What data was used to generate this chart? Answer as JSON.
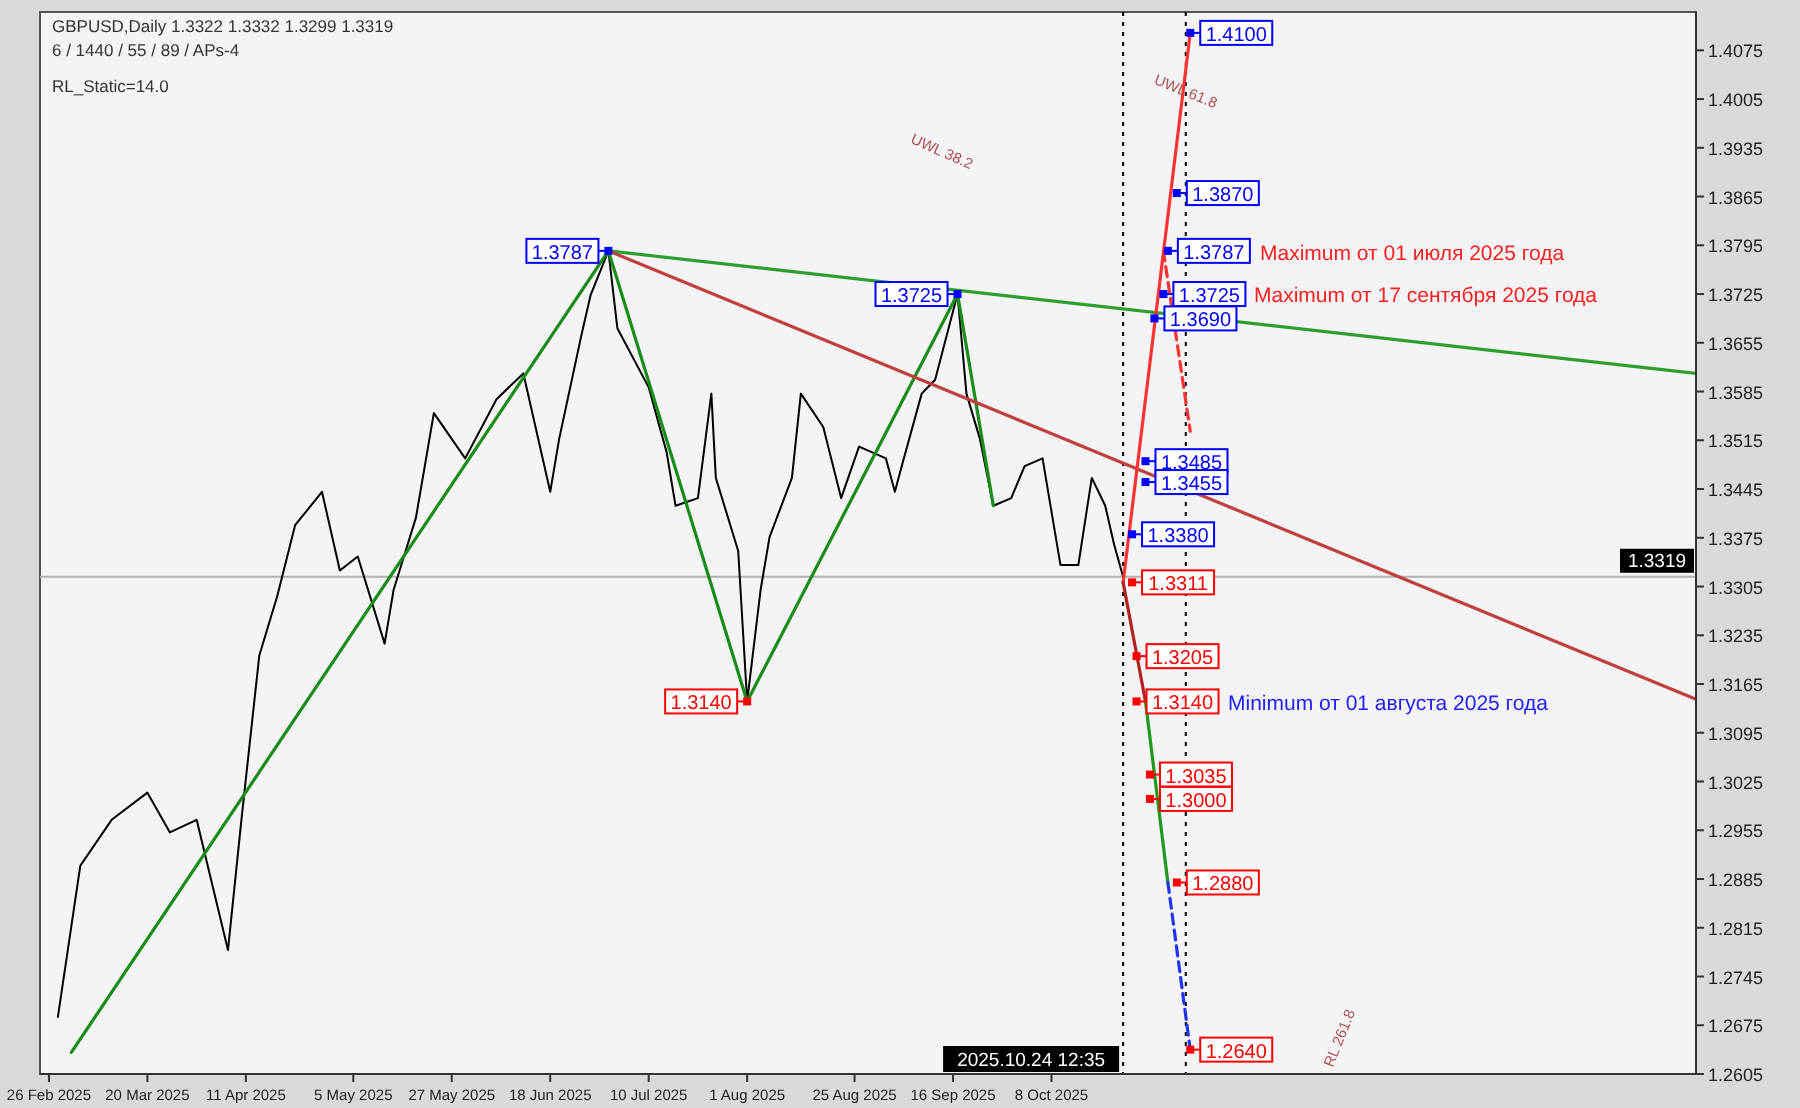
{
  "chart_data": {
    "type": "line",
    "title": "GBPUSD,Daily  1.3322 1.3332 1.3299 1.3319",
    "subtitle": "6 / 1440 / 55 / 89 / APs-4",
    "annotations": [
      "RL_Static=14.0",
      "UWL 38.2",
      "UWL 61.8",
      "RL 261.8",
      "Maximum от 01 июля 2025 года",
      "Maximum от 17 сентября 2025 года",
      "Minimum от 01 августа 2025 года"
    ],
    "xlim": [
      "2025-02-24",
      "2026-03-01"
    ],
    "xticks": [
      {
        "value": "2025-02-26",
        "label": "26 Feb 2025"
      },
      {
        "value": "2025-03-20",
        "label": "20 Mar 2025"
      },
      {
        "value": "2025-04-11",
        "label": "11 Apr 2025"
      },
      {
        "value": "2025-05-05",
        "label": "5 May 2025"
      },
      {
        "value": "2025-05-27",
        "label": "27 May 2025"
      },
      {
        "value": "2025-06-18",
        "label": "18 Jun 2025"
      },
      {
        "value": "2025-07-10",
        "label": "10 Jul 2025"
      },
      {
        "value": "2025-08-01",
        "label": "1 Aug 2025"
      },
      {
        "value": "2025-08-25",
        "label": "25 Aug 2025"
      },
      {
        "value": "2025-09-16",
        "label": "16 Sep 2025"
      },
      {
        "value": "2025-10-08",
        "label": "8 Oct 2025"
      }
    ],
    "ylim": [
      1.2605,
      1.413
    ],
    "yticks": [
      1.2605,
      1.2675,
      1.2745,
      1.2815,
      1.2885,
      1.2955,
      1.3025,
      1.3095,
      1.3165,
      1.3235,
      1.3305,
      1.3375,
      1.3445,
      1.3515,
      1.3585,
      1.3655,
      1.3725,
      1.3795,
      1.3865,
      1.3935,
      1.4005,
      1.4075
    ],
    "ref_lines": [
      {
        "axis": "y",
        "value": 1.3319,
        "label": "1.3319",
        "color": "#b0b0b0"
      },
      {
        "axis": "x",
        "value": "2025-10-24",
        "label": "2025.10.24 12:35",
        "color": "#000000",
        "line_style": "dotted"
      },
      {
        "axis": "x",
        "value": "2025-11-07",
        "label": null,
        "color": "#000000",
        "line_style": "dotted"
      }
    ],
    "series": [
      {
        "type": "line",
        "color": "#000000",
        "x": [
          "2025-02-28",
          "2025-03-05",
          "2025-03-12",
          "2025-03-20",
          "2025-03-25",
          "2025-03-31",
          "2025-04-07",
          "2025-04-10",
          "2025-04-14",
          "2025-04-18",
          "2025-04-22",
          "2025-04-28",
          "2025-05-02",
          "2025-05-06",
          "2025-05-12",
          "2025-05-14",
          "2025-05-19",
          "2025-05-23",
          "2025-05-30",
          "2025-06-06",
          "2025-06-12",
          "2025-06-18",
          "2025-06-20",
          "2025-06-25",
          "2025-06-27",
          "2025-07-01",
          "2025-07-03",
          "2025-07-10",
          "2025-07-14",
          "2025-07-16",
          "2025-07-21",
          "2025-07-24",
          "2025-07-25",
          "2025-07-30",
          "2025-08-01",
          "2025-08-04",
          "2025-08-06",
          "2025-08-11",
          "2025-08-13",
          "2025-08-18",
          "2025-08-22",
          "2025-08-26",
          "2025-09-01",
          "2025-09-03",
          "2025-09-05",
          "2025-09-09",
          "2025-09-12",
          "2025-09-17",
          "2025-09-19",
          "2025-09-22",
          "2025-09-25",
          "2025-09-29",
          "2025-10-02",
          "2025-10-06",
          "2025-10-10",
          "2025-10-14",
          "2025-10-17",
          "2025-10-20",
          "2025-10-22",
          "2025-10-24"
        ],
        "values": [
          1.2687,
          1.2904,
          1.297,
          1.3009,
          1.2952,
          1.297,
          1.2783,
          1.297,
          1.3206,
          1.3291,
          1.3393,
          1.3441,
          1.3328,
          1.3348,
          1.3223,
          1.33,
          1.3404,
          1.3554,
          1.3489,
          1.3574,
          1.3611,
          1.3441,
          1.3517,
          1.3667,
          1.3723,
          1.3787,
          1.3676,
          1.3591,
          1.3498,
          1.3421,
          1.3432,
          1.3582,
          1.3461,
          1.3356,
          1.314,
          1.33,
          1.3376,
          1.3461,
          1.3582,
          1.3534,
          1.3432,
          1.3506,
          1.3489,
          1.3441,
          1.3489,
          1.3582,
          1.3602,
          1.3725,
          1.3582,
          1.3517,
          1.3421,
          1.3432,
          1.3478,
          1.3489,
          1.3336,
          1.3336,
          1.3461,
          1.3421,
          1.3365,
          1.3319
        ]
      },
      {
        "type": "line",
        "color": "#1a8c1a",
        "x": [
          "2025-03-03",
          "2025-07-01",
          "2025-08-01",
          "2025-09-17",
          "2025-09-25"
        ],
        "values": [
          1.2636,
          1.3787,
          1.314,
          1.3725,
          1.3421
        ]
      },
      {
        "type": "line",
        "color": "#2e9e2e",
        "x": [
          "2025-07-01",
          "2026-03-01"
        ],
        "values": [
          1.3787,
          1.3611
        ]
      },
      {
        "type": "line",
        "color": "#c04040",
        "x": [
          "2025-07-01",
          "2026-03-01"
        ],
        "values": [
          1.3787,
          1.3143
        ]
      },
      {
        "type": "line",
        "color": "#ff3333",
        "x": [
          "2025-10-24",
          "2025-11-08"
        ],
        "values": [
          1.3311,
          1.41
        ]
      },
      {
        "type": "line",
        "color": "#ff3333",
        "line_style": "dashed",
        "x": [
          "2025-11-02",
          "2025-11-08"
        ],
        "values": [
          1.3787,
          1.3528
        ]
      },
      {
        "type": "line",
        "color": "#b22222",
        "x": [
          "2025-10-24",
          "2025-10-29"
        ],
        "values": [
          1.3311,
          1.314
        ]
      },
      {
        "type": "line",
        "color": "#1f9a1f",
        "x": [
          "2025-10-29",
          "2025-11-03"
        ],
        "values": [
          1.314,
          1.288
        ]
      },
      {
        "type": "line",
        "color": "#2233ee",
        "line_style": "dashed",
        "x": [
          "2025-11-03",
          "2025-11-08"
        ],
        "values": [
          1.288,
          1.264
        ]
      },
      {
        "type": "scatter",
        "marker": "square",
        "colors": [
          "#0000ff",
          "#0000ff",
          "#ff0000",
          "#0000ff",
          "#0000ff",
          "#0000ff",
          "#0000ff",
          "#0000ff",
          "#0000ff",
          "#0000ff",
          "#0000ff",
          "#ff0000",
          "#ff0000",
          "#ff0000",
          "#ff0000",
          "#ff0000",
          "#ff0000",
          "#ff0000"
        ],
        "x": [
          "2025-07-01",
          "2025-09-17",
          "2025-08-01",
          "2025-11-08",
          "2025-11-05",
          "2025-11-03",
          "2025-11-02",
          "2025-10-31",
          "2025-10-29",
          "2025-10-29",
          "2025-10-26",
          "2025-10-26",
          "2025-10-27",
          "2025-10-27",
          "2025-10-30",
          "2025-10-30",
          "2025-11-05",
          "2025-11-08"
        ],
        "values": [
          1.3787,
          1.3725,
          1.314,
          1.41,
          1.387,
          1.3787,
          1.3725,
          1.369,
          1.3485,
          1.3455,
          1.338,
          1.3311,
          1.3205,
          1.314,
          1.3035,
          1.3,
          1.288,
          1.264
        ],
        "value_labels": [
          "1.3787",
          "1.3725",
          "1.3140",
          "1.4100",
          "1.3870",
          "1.3787",
          "1.3725",
          "1.3690",
          "1.3485",
          "1.3455",
          "1.3380",
          "1.3311",
          "1.3205",
          "1.3140",
          "1.3035",
          "1.3000",
          "1.2880",
          "1.2640"
        ]
      }
    ]
  }
}
